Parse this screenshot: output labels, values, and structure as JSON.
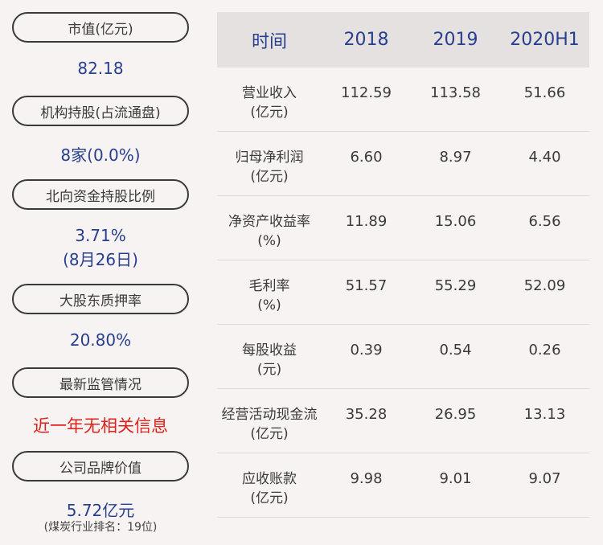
{
  "left": {
    "market_cap": {
      "label": "市值(亿元)",
      "value": "82.18"
    },
    "institutional": {
      "label": "机构持股(占流通盘)",
      "value": "8家(0.0%)"
    },
    "northbound": {
      "label": "北向资金持股比例",
      "value": "3.71%",
      "date": "(8月26日)"
    },
    "pledge": {
      "label": "大股东质押率",
      "value": "20.80%"
    },
    "regulation": {
      "label": "最新监管情况",
      "value": "近一年无相关信息",
      "color": "#e0211b"
    },
    "brand": {
      "label": "公司品牌价值",
      "value": "5.72亿元",
      "note": "(煤炭行业排名：19位)"
    }
  },
  "table": {
    "headers": [
      "时间",
      "2018",
      "2019",
      "2020H1"
    ],
    "rows": [
      {
        "label1": "营业收入",
        "label2": "(亿元)",
        "values": [
          "112.59",
          "113.58",
          "51.66"
        ]
      },
      {
        "label1": "归母净利润",
        "label2": "(亿元)",
        "values": [
          "6.60",
          "8.97",
          "4.40"
        ]
      },
      {
        "label1": "净资产收益率",
        "label2": "(%)",
        "values": [
          "11.89",
          "15.06",
          "6.56"
        ]
      },
      {
        "label1": "毛利率",
        "label2": "(%)",
        "values": [
          "51.57",
          "55.29",
          "52.09"
        ]
      },
      {
        "label1": "每股收益",
        "label2": "(元)",
        "values": [
          "0.39",
          "0.54",
          "0.26"
        ]
      },
      {
        "label1": "经营活动现金流",
        "label2": "(亿元)",
        "values": [
          "35.28",
          "26.95",
          "13.13"
        ]
      },
      {
        "label1": "应收账款",
        "label2": "(亿元)",
        "values": [
          "9.98",
          "9.01",
          "9.07"
        ]
      }
    ]
  },
  "colors": {
    "accent": "#273f8f",
    "alert": "#e0211b",
    "header_bg": "#e5e1e0",
    "page_bg": "#f7f3f2"
  }
}
